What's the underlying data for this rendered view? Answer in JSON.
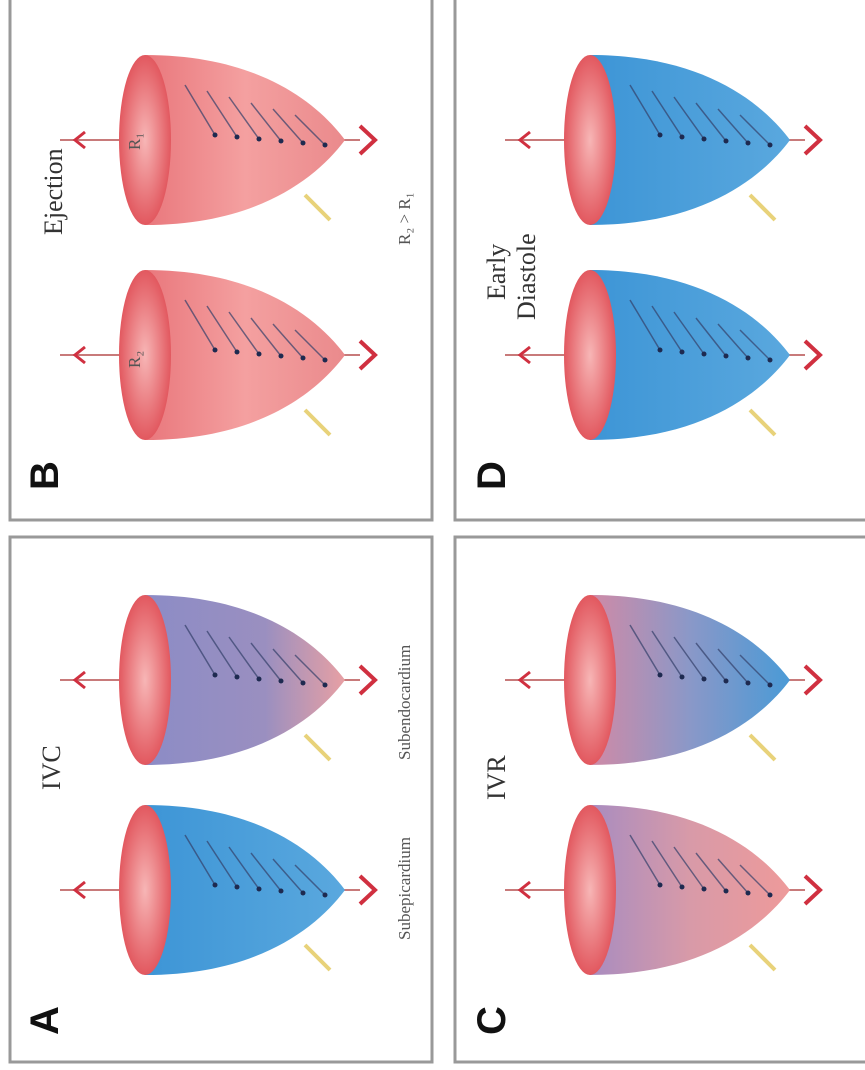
{
  "panels": [
    {
      "label": "A",
      "title": "IVC",
      "captions": [
        "Subepicardium",
        "Subendocardium"
      ]
    },
    {
      "label": "B",
      "title": "Ejection",
      "captions": [
        "R₂ > R₁"
      ],
      "cone_labels": [
        "R₂",
        "R₁"
      ]
    },
    {
      "label": "C",
      "title": "IVR"
    },
    {
      "label": "D",
      "title_lines": [
        "Early",
        "Diastole"
      ]
    }
  ]
}
